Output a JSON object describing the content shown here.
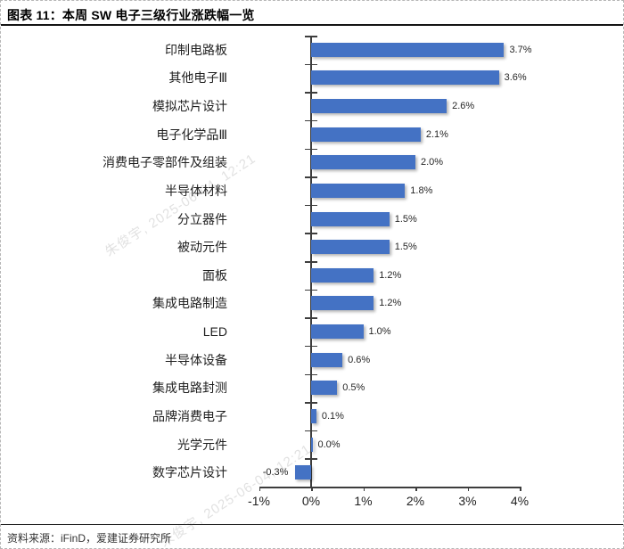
{
  "figure": {
    "title": "图表 11：本周 SW 电子三级行业涨跌幅一览",
    "source": "资料来源：iFinD，爱建证券研究所"
  },
  "watermark": {
    "text": "朱俊宇, 2025-06-04, 12:21"
  },
  "chart_data": {
    "type": "bar",
    "orientation": "horizontal",
    "title": "本周SW电子三级行业涨跌幅一览",
    "categories": [
      "印制电路板",
      "其他电子Ⅲ",
      "模拟芯片设计",
      "电子化学品Ⅲ",
      "消费电子零部件及组装",
      "半导体材料",
      "分立器件",
      "被动元件",
      "面板",
      "集成电路制造",
      "LED",
      "半导体设备",
      "集成电路封测",
      "品牌消费电子",
      "光学元件",
      "数字芯片设计"
    ],
    "values": [
      3.7,
      3.6,
      2.6,
      2.1,
      2.0,
      1.8,
      1.5,
      1.5,
      1.2,
      1.2,
      1.0,
      0.6,
      0.5,
      0.1,
      0.0,
      -0.3
    ],
    "value_labels": [
      "3.7%",
      "3.6%",
      "2.6%",
      "2.1%",
      "2.0%",
      "1.8%",
      "1.5%",
      "1.5%",
      "1.2%",
      "1.2%",
      "1.0%",
      "0.6%",
      "0.5%",
      "0.1%",
      "0.0%",
      "-0.3%"
    ],
    "x_tick_labels": [
      "-1%",
      "0%",
      "1%",
      "2%",
      "3%",
      "4%"
    ],
    "x_tick_values": [
      -1,
      0,
      1,
      2,
      3,
      4
    ],
    "xlim": [
      -1,
      4
    ],
    "unit": "%",
    "bar_color": "#4472C4",
    "grid": false,
    "legend": false
  }
}
